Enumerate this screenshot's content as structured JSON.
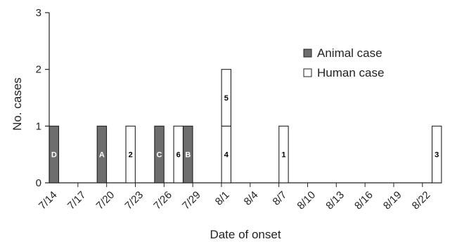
{
  "chart_data": {
    "type": "bar",
    "stacked": true,
    "xlabel": "Date of onset",
    "ylabel": "No. cases",
    "ylim": [
      0,
      3
    ],
    "yticks": [
      0,
      1,
      2,
      3
    ],
    "x_start": "7/14",
    "x_end": "8/23",
    "x_tick_labels": [
      "7/14",
      "7/17",
      "7/20",
      "7/23",
      "7/26",
      "7/29",
      "8/1",
      "8/4",
      "8/7",
      "8/10",
      "8/13",
      "8/16",
      "8/19",
      "8/22"
    ],
    "legend": {
      "position": "top-right",
      "entries": [
        {
          "name": "Animal case",
          "color": "#6e6e6e"
        },
        {
          "name": "Human case",
          "color": "#ffffff"
        }
      ]
    },
    "series": [
      {
        "name": "Animal case",
        "color": "#6e6e6e",
        "points": [
          {
            "date": "7/14",
            "label": "D"
          },
          {
            "date": "7/19",
            "label": "A"
          },
          {
            "date": "7/25",
            "label": "C"
          },
          {
            "date": "7/28",
            "label": "B"
          }
        ]
      },
      {
        "name": "Human case",
        "color": "#ffffff",
        "points": [
          {
            "date": "7/22",
            "label": "2"
          },
          {
            "date": "7/27",
            "label": "6"
          },
          {
            "date": "8/1",
            "label": "4"
          },
          {
            "date": "8/1",
            "label": "5"
          },
          {
            "date": "8/7",
            "label": "1"
          },
          {
            "date": "8/23",
            "label": "3"
          }
        ]
      }
    ]
  }
}
